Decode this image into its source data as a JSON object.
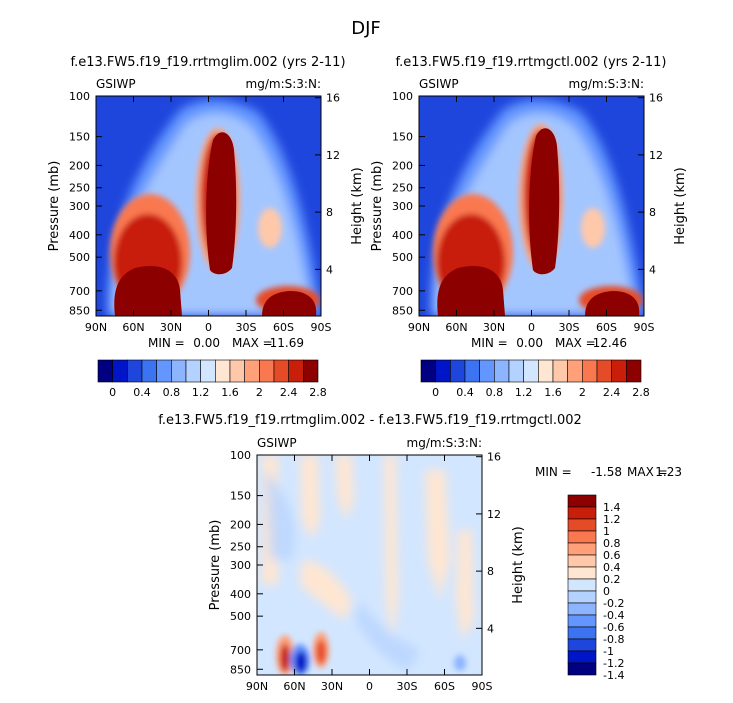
{
  "figure": {
    "title": "DJF"
  },
  "chart_data": [
    {
      "type": "heatmap",
      "title": "f.e13.FW5.f19_f19.rrtmglim.002 (yrs 2-11)",
      "variable": "GSIWP",
      "units": "mg/m:S:3:N:",
      "ylabel": "Pressure (mb)",
      "ylabel_right": "Height (km)",
      "x_ticks": [
        "90N",
        "60N",
        "30N",
        "0",
        "30S",
        "60S",
        "90S"
      ],
      "y_ticks": [
        "100",
        "150",
        "200",
        "250",
        "300",
        "400",
        "500",
        "700",
        "850"
      ],
      "y_ticks_right": [
        "16",
        "12",
        "8",
        "4"
      ],
      "ylim": [
        100,
        900
      ],
      "min": "0.00",
      "max": "11.69",
      "min_label": "MIN =",
      "max_label": "MAX =",
      "colorbar_labels": [
        "0",
        "0.4",
        "0.8",
        "1.2",
        "1.6",
        "2",
        "2.4",
        "2.8"
      ]
    },
    {
      "type": "heatmap",
      "title": "f.e13.FW5.f19_f19.rrtmgctl.002 (yrs 2-11)",
      "variable": "GSIWP",
      "units": "mg/m:S:3:N:",
      "ylabel": "Pressure (mb)",
      "ylabel_right": "Height (km)",
      "x_ticks": [
        "90N",
        "60N",
        "30N",
        "0",
        "30S",
        "60S",
        "90S"
      ],
      "y_ticks": [
        "100",
        "150",
        "200",
        "250",
        "300",
        "400",
        "500",
        "700",
        "850"
      ],
      "y_ticks_right": [
        "16",
        "12",
        "8",
        "4"
      ],
      "ylim": [
        100,
        900
      ],
      "min": "0.00",
      "max": "12.46",
      "min_label": "MIN =",
      "max_label": "MAX =",
      "colorbar_labels": [
        "0",
        "0.4",
        "0.8",
        "1.2",
        "1.6",
        "2",
        "2.4",
        "2.8"
      ]
    },
    {
      "type": "heatmap",
      "title": "f.e13.FW5.f19_f19.rrtmglim.002 - f.e13.FW5.f19_f19.rrtmgctl.002",
      "variable": "GSIWP",
      "units": "mg/m:S:3:N:",
      "ylabel": "Pressure (mb)",
      "ylabel_right": "Height (km)",
      "x_ticks": [
        "90N",
        "60N",
        "30N",
        "0",
        "30S",
        "60S",
        "90S"
      ],
      "y_ticks": [
        "100",
        "150",
        "200",
        "250",
        "300",
        "400",
        "500",
        "700",
        "850"
      ],
      "y_ticks_right": [
        "16",
        "12",
        "8",
        "4"
      ],
      "ylim": [
        100,
        900
      ],
      "min": "-1.58",
      "max": "1.23",
      "min_label": "MIN =",
      "max_label": "MAX =",
      "colorbar_labels": [
        "1.4",
        "1.2",
        "1",
        "0.8",
        "0.6",
        "0.4",
        "0.2",
        "0",
        "-0.2",
        "-0.4",
        "-0.6",
        "-0.8",
        "-1",
        "-1.2",
        "-1.4"
      ]
    }
  ],
  "colors": {
    "abs_scale": [
      "#000080",
      "#0015c8",
      "#1e46dc",
      "#3c73f0",
      "#6496ff",
      "#8cb4ff",
      "#b4d2ff",
      "#d2e6ff",
      "#ffe6d2",
      "#ffc8aa",
      "#ffa078",
      "#fa7850",
      "#e64b28",
      "#c81e0a",
      "#8c0000"
    ],
    "diff_scale": [
      "#8c0000",
      "#c81e0a",
      "#e64b28",
      "#fa7850",
      "#ffa078",
      "#ffc8aa",
      "#ffe6d2",
      "#d2e6ff",
      "#b4d2ff",
      "#8cb4ff",
      "#6496ff",
      "#3c73f0",
      "#1e46dc",
      "#0015c8",
      "#000080"
    ]
  }
}
